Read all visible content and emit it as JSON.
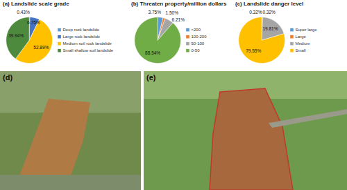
{
  "chart_data": [
    {
      "type": "pie",
      "title": "(a) Landslide scale grade",
      "categories": [
        "Deep rock landslide",
        "Large rock landslide",
        "Medium soil rock landslide",
        "Small shallow soil landslide"
      ],
      "values": [
        0.43,
        6.75,
        52.89,
        39.94
      ],
      "value_labels": [
        "0.43%",
        "6.75%",
        "52.89%",
        "39.94%"
      ],
      "colors": [
        "#5b9bd5",
        "#4472c4",
        "#ffc000",
        "#4e8a3e"
      ],
      "data_labels": true,
      "legend": "right"
    },
    {
      "type": "pie",
      "title": "(b) Threaten property/million dollars",
      "categories": [
        ">200",
        "100-200",
        "50-100",
        "0-50"
      ],
      "values": [
        3.75,
        1.5,
        6.21,
        88.54
      ],
      "value_labels": [
        "3.75%",
        "1.50%",
        "6.21%",
        "88.54%"
      ],
      "colors": [
        "#5b9bd5",
        "#ed7d31",
        "#a5a5a5",
        "#70ad47"
      ],
      "data_labels": true,
      "legend": "right"
    },
    {
      "type": "pie",
      "title": "(c) Landslide danger level",
      "categories": [
        "Super large",
        "Large",
        "Medium",
        "Small"
      ],
      "values": [
        0.32,
        0.32,
        19.81,
        79.55
      ],
      "value_labels": [
        "0.32%",
        "0.32%",
        "19.81%",
        "79.55%"
      ],
      "colors": [
        "#5b9bd5",
        "#ed7d31",
        "#a5a5a5",
        "#ffc000"
      ],
      "data_labels": true,
      "legend": "right"
    }
  ],
  "photos": [
    {
      "label": "(d)"
    },
    {
      "label": "(e)"
    }
  ]
}
